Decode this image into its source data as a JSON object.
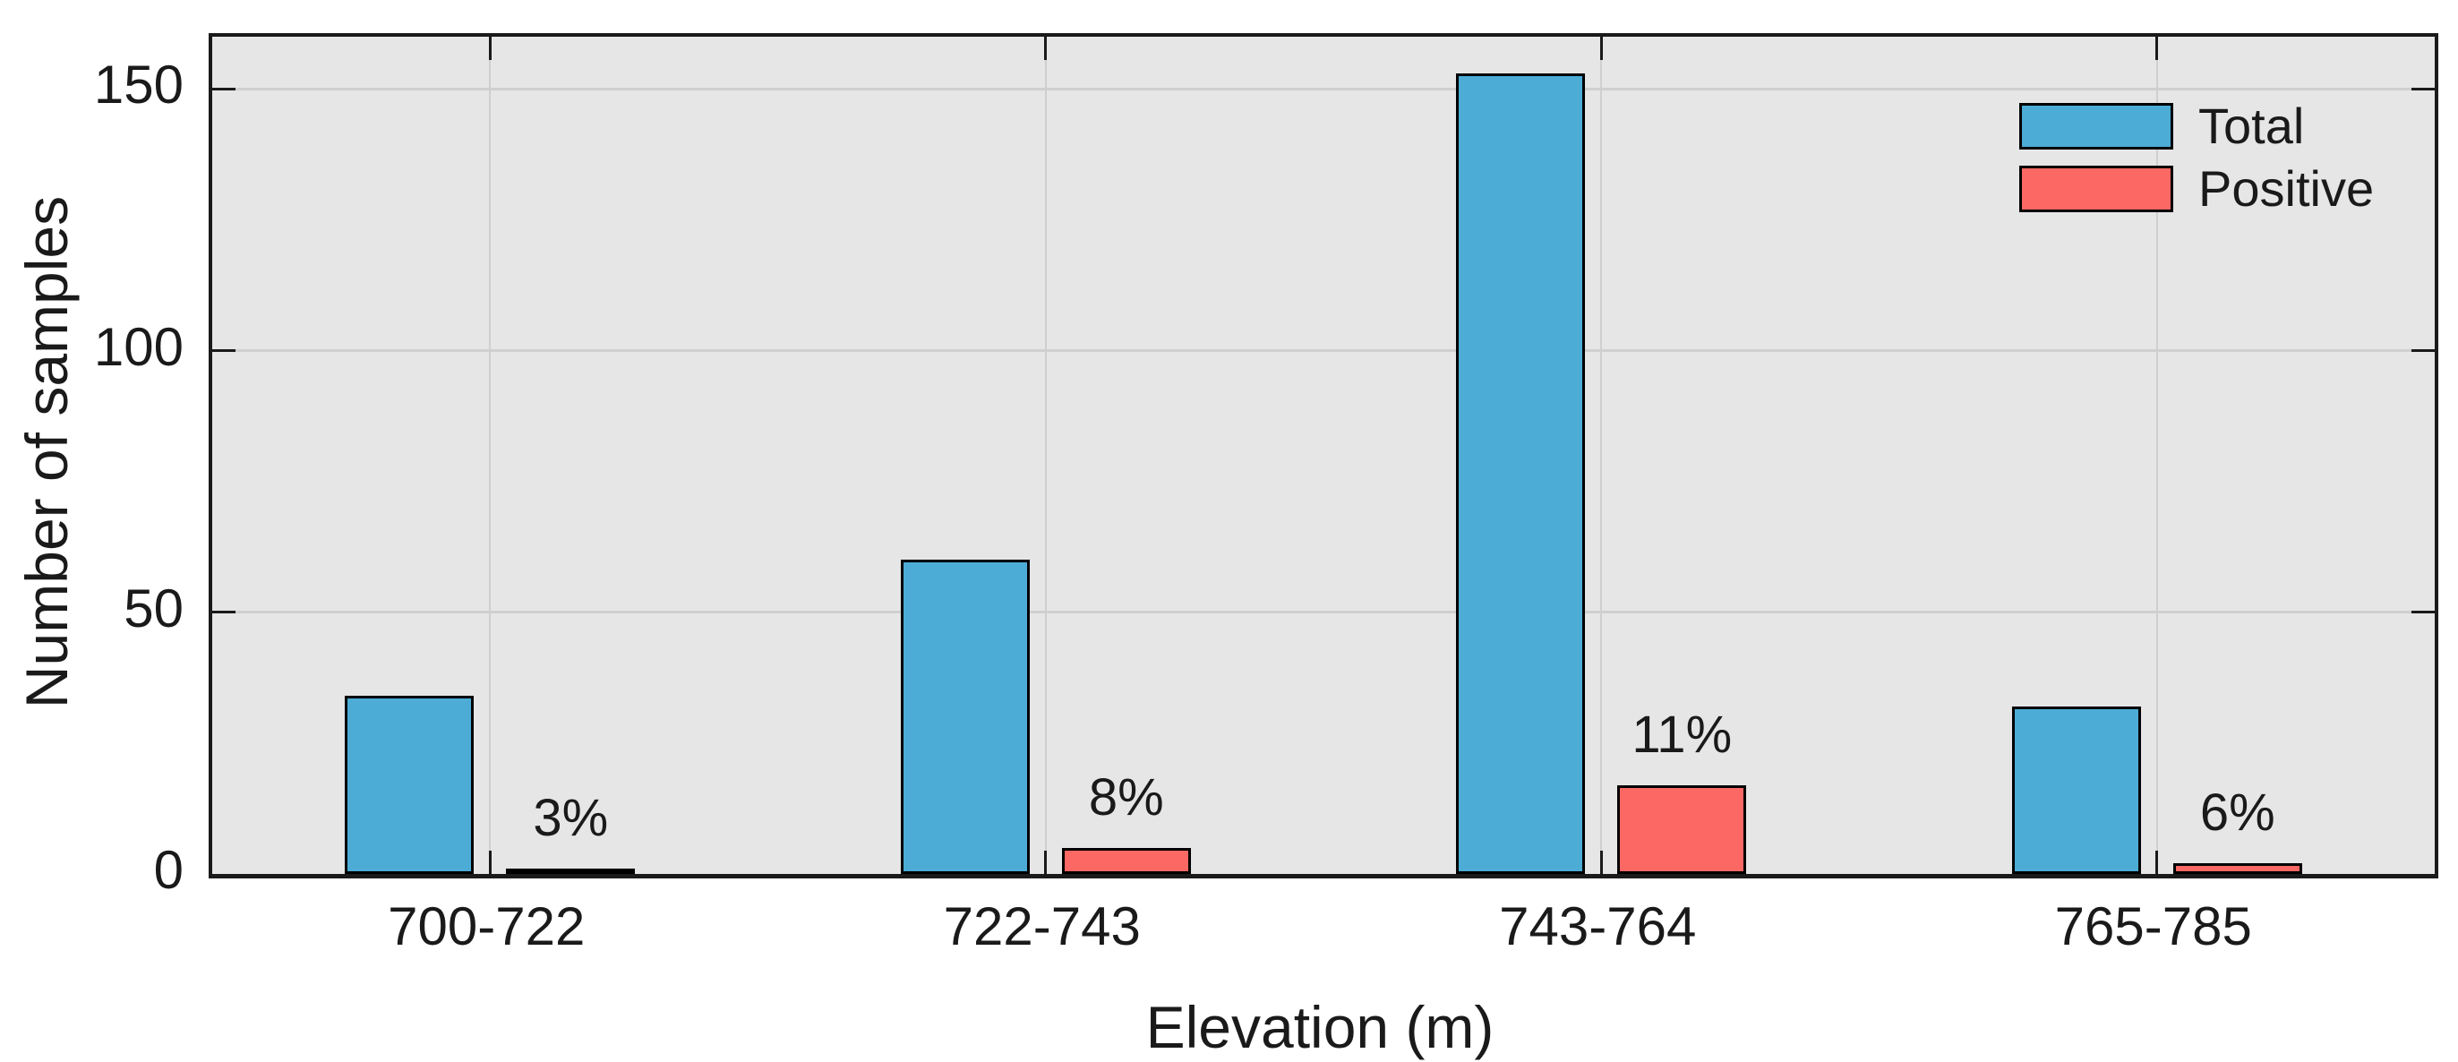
{
  "chart_data": {
    "type": "bar",
    "title": "",
    "categories": [
      "700-722",
      "722-743",
      "743-764",
      "765-785"
    ],
    "series": [
      {
        "name": "Total",
        "color": "#4CACD6",
        "values": [
          34,
          60,
          153,
          32
        ]
      },
      {
        "name": "Positive",
        "color": "#FC6864",
        "values": [
          1,
          5,
          17,
          2
        ],
        "bar_labels": [
          "3%",
          "8%",
          "11%",
          "6%"
        ]
      }
    ],
    "xlabel": "Elevation (m)",
    "ylabel": "Number of samples",
    "ylim": [
      0,
      160
    ],
    "ytick_labels": [
      "0",
      "50",
      "100",
      "150"
    ],
    "ytick_values": [
      0,
      50,
      100,
      150
    ],
    "grid": true,
    "legend": {
      "position": "top-right",
      "box": false
    },
    "colors": {
      "page_bg": "#FFFFFF",
      "plot_bg": "#E6E6E6",
      "grid": "#CFCFCF",
      "axis_box": "#1A1A1A",
      "bar_edge": "#000000",
      "text": "#1A1A1A"
    }
  }
}
